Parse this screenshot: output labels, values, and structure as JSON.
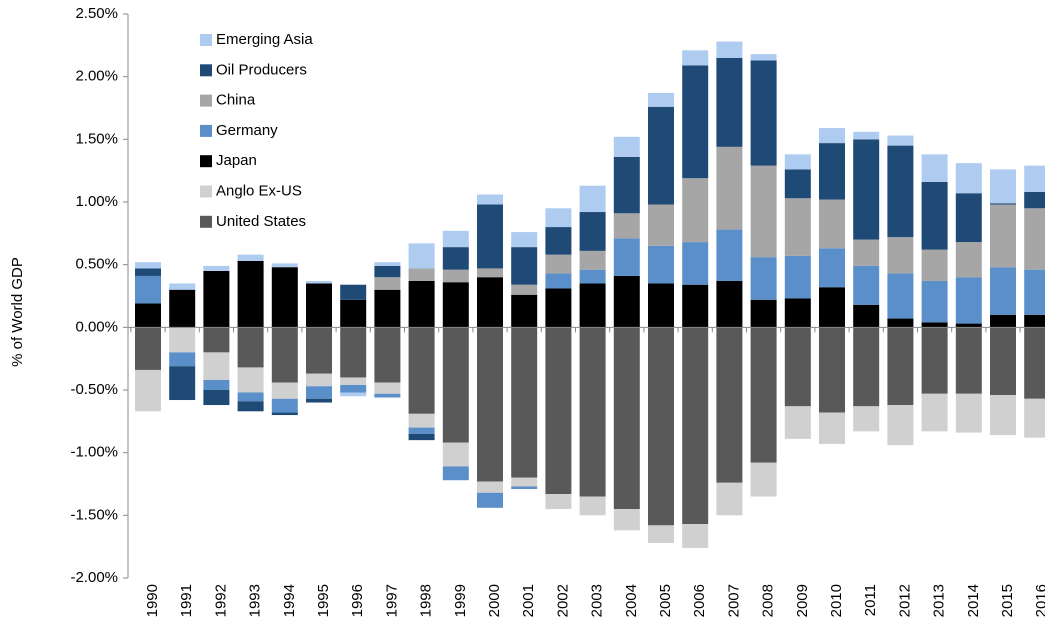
{
  "chart_data": {
    "type": "stacked-bar",
    "y_label": "% of World GDP",
    "categories": [
      "1990",
      "1991",
      "1992",
      "1993",
      "1994",
      "1995",
      "1996",
      "1997",
      "1998",
      "1999",
      "2000",
      "2001",
      "2002",
      "2003",
      "2004",
      "2005",
      "2006",
      "2007",
      "2008",
      "2009",
      "2010",
      "2011",
      "2012",
      "2013",
      "2014",
      "2015",
      "2016"
    ],
    "series": [
      {
        "name": "United States",
        "color": "#595959",
        "values": [
          -0.34,
          0,
          -0.2,
          -0.32,
          -0.44,
          -0.37,
          -0.4,
          -0.44,
          -0.69,
          -0.92,
          -1.23,
          -1.2,
          -1.33,
          -1.35,
          -1.45,
          -1.58,
          -1.57,
          -1.24,
          -1.08,
          -0.63,
          -0.68,
          -0.63,
          -0.62,
          -0.53,
          -0.53,
          -0.54,
          -0.57
        ]
      },
      {
        "name": "Anglo Ex-US",
        "color": "#d0d0d0",
        "values": [
          -0.33,
          -0.2,
          -0.22,
          -0.2,
          -0.13,
          -0.1,
          -0.06,
          -0.09,
          -0.11,
          -0.19,
          -0.09,
          -0.07,
          -0.12,
          -0.15,
          -0.17,
          -0.14,
          -0.19,
          -0.26,
          -0.27,
          -0.26,
          -0.25,
          -0.2,
          -0.32,
          -0.3,
          -0.31,
          -0.32,
          -0.31
        ]
      },
      {
        "name": "Japan",
        "color": "#000000",
        "values": [
          0.19,
          0.3,
          0.45,
          0.53,
          0.48,
          0.35,
          0.22,
          0.3,
          0.37,
          0.36,
          0.4,
          0.26,
          0.31,
          0.35,
          0.41,
          0.35,
          0.34,
          0.37,
          0.22,
          0.23,
          0.32,
          0.18,
          0.07,
          0.04,
          0.03,
          0.1,
          0.1
        ]
      },
      {
        "name": "Germany",
        "color": "#5b8fc9",
        "values": [
          0.22,
          -0.11,
          -0.08,
          -0.07,
          -0.11,
          -0.1,
          -0.06,
          -0.03,
          -0.05,
          -0.11,
          -0.12,
          -0.02,
          0.12,
          0.11,
          0.3,
          0.3,
          0.34,
          0.41,
          0.34,
          0.34,
          0.31,
          0.31,
          0.36,
          0.33,
          0.37,
          0.38,
          0.36
        ]
      },
      {
        "name": "China",
        "color": "#a6a6a6",
        "values": [
          0,
          0,
          0,
          0,
          0,
          0,
          0,
          0.1,
          0.1,
          0.1,
          0.07,
          0.08,
          0.15,
          0.15,
          0.2,
          0.33,
          0.51,
          0.66,
          0.73,
          0.46,
          0.39,
          0.21,
          0.29,
          0.25,
          0.28,
          0.5,
          0.49
        ]
      },
      {
        "name": "Oil Producers",
        "color": "#1f4a76",
        "values": [
          0.06,
          -0.27,
          -0.12,
          -0.08,
          -0.02,
          -0.03,
          0.12,
          0.09,
          -0.05,
          0.18,
          0.51,
          0.3,
          0.22,
          0.31,
          0.45,
          0.78,
          0.9,
          0.71,
          0.84,
          0.23,
          0.45,
          0.8,
          0.73,
          0.54,
          0.39,
          0.01,
          0.13
        ]
      },
      {
        "name": "Emerging Asia",
        "color": "#aecbf0",
        "values": [
          0.05,
          0.05,
          0.04,
          0.05,
          0.03,
          0.02,
          -0.03,
          0.03,
          0.2,
          0.13,
          0.08,
          0.12,
          0.15,
          0.21,
          0.16,
          0.11,
          0.12,
          0.13,
          0.05,
          0.12,
          0.12,
          0.06,
          0.08,
          0.22,
          0.24,
          0.27,
          0.21
        ]
      }
    ],
    "ylim": [
      -2,
      2.5
    ],
    "yticks": [
      {
        "value": -2,
        "label": "-2.00%"
      },
      {
        "value": -1.5,
        "label": "-1.50%"
      },
      {
        "value": -1,
        "label": "-1.00%"
      },
      {
        "value": -0.5,
        "label": "-0.50%"
      },
      {
        "value": 0,
        "label": "0.00%"
      },
      {
        "value": 0.5,
        "label": "0.50%"
      },
      {
        "value": 1,
        "label": "1.00%"
      },
      {
        "value": 1.5,
        "label": "1.50%"
      },
      {
        "value": 2,
        "label": "2.00%"
      },
      {
        "value": 2.5,
        "label": "2.50%"
      }
    ],
    "legend": "upper-left"
  }
}
